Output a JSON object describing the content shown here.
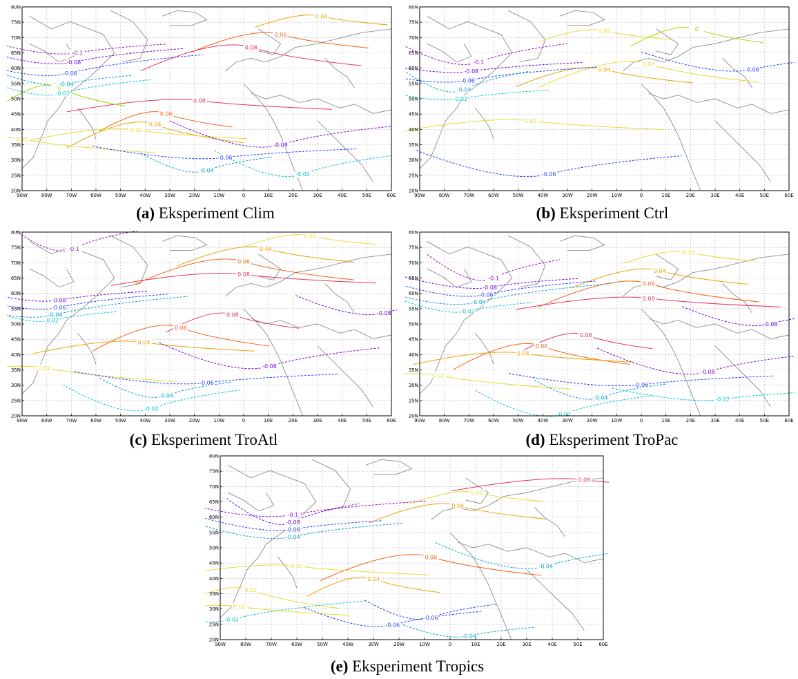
{
  "axes": {
    "lat_ticks": [
      "20N",
      "25N",
      "30N",
      "35N",
      "40N",
      "45N",
      "50N",
      "55N",
      "60N",
      "65N",
      "70N",
      "75N",
      "80N"
    ],
    "lon_ticks": [
      "90W",
      "80W",
      "70W",
      "60W",
      "50W",
      "40W",
      "30W",
      "20W",
      "10W",
      "0",
      "10E",
      "20E",
      "30E",
      "40E",
      "50E",
      "60E"
    ]
  },
  "contour_colors": {
    "neg_010": "#a000c8",
    "neg_008": "#6e00dc",
    "neg_006": "#1e3cff",
    "neg_004": "#00a0c8",
    "neg_002": "#00c8c8",
    "zero": "#a0dc00",
    "pos_002": "#e6dc32",
    "pos_004": "#f0a000",
    "pos_006": "#f06414",
    "pos_008": "#e6325a",
    "pos_010": "#c80000"
  },
  "panels": [
    {
      "id": "a",
      "letter": "(a)",
      "caption": "Eksperiment Clim",
      "labels": [
        "0.04",
        "0.06",
        "0.08",
        "0.08",
        "0.06",
        "0.04",
        "0.02",
        "0.02",
        "0",
        "-0.1",
        "-0.08",
        "-0.06",
        "-0.04",
        "-0.02",
        "-0.08",
        "-0.06",
        "-0.04",
        "-0.02"
      ]
    },
    {
      "id": "b",
      "letter": "(b)",
      "caption": "Eksperiment Ctrl",
      "labels": [
        "0.02",
        "0.04",
        "0.02",
        "0.02",
        "0",
        "-0.1",
        "-0.08",
        "-0.06",
        "-0.04",
        "-0.02",
        "-0.06",
        "-0.06"
      ]
    },
    {
      "id": "c",
      "letter": "(c)",
      "caption": "Eksperiment TroAtl",
      "labels": [
        "0.02",
        "0.04",
        "0.06",
        "0.08",
        "0.08",
        "0.06",
        "0.04",
        "0.02",
        "-0.1",
        "-0.08",
        "-0.06",
        "-0.04",
        "-0.02",
        "-0.08",
        "-0.08",
        "-0.06",
        "-0.04",
        "-0.02"
      ]
    },
    {
      "id": "d",
      "letter": "(d)",
      "caption": "Eksperiment TroPac",
      "labels": [
        "0.02",
        "0.04",
        "0.06",
        "0.08",
        "0.08",
        "0.06",
        "0.04",
        "0.02",
        "-0.1",
        "-0.08",
        "-0.06",
        "-0.04",
        "-0.02",
        "-0.08",
        "-0.08",
        "-0.06",
        "-0.04",
        "-0.02",
        "-0.02"
      ]
    },
    {
      "id": "e",
      "letter": "(e)",
      "caption": "Eksperiment Tropics",
      "labels": [
        "0.02",
        "0.04",
        "0.06",
        "0.02",
        "0.04",
        "0.02",
        "0.02",
        "-0.1",
        "-0.08",
        "-0.06",
        "-0.04",
        "-0.02",
        "-0.04",
        "-0.06",
        "-0.04",
        "0.08",
        "-0.06"
      ]
    }
  ]
}
